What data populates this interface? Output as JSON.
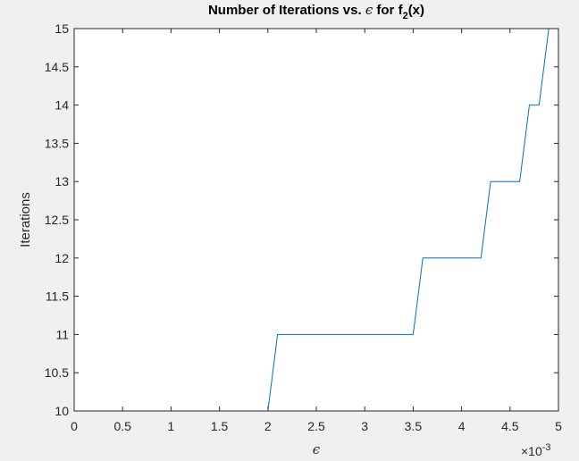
{
  "chart_data": {
    "type": "line",
    "title_main": "Number of Iterations vs. ",
    "title_symbol": "ϵ",
    "title_for": " for f",
    "title_subscript": "2",
    "title_tail": "(x)",
    "xlabel": "ϵ",
    "ylabel": "Iterations",
    "x_exponent_base": "×10",
    "x_exponent_power": "-3",
    "xlim": [
      0,
      5
    ],
    "ylim": [
      10,
      15
    ],
    "xticks": [
      0,
      0.5,
      1,
      1.5,
      2,
      2.5,
      3,
      3.5,
      4,
      4.5,
      5
    ],
    "xtick_labels": [
      "0",
      "0.5",
      "1",
      "1.5",
      "2",
      "2.5",
      "3",
      "3.5",
      "4",
      "4.5",
      "5"
    ],
    "yticks": [
      10,
      10.5,
      11,
      11.5,
      12,
      12.5,
      13,
      13.5,
      14,
      14.5,
      15
    ],
    "ytick_labels": [
      "10",
      "10.5",
      "11",
      "11.5",
      "12",
      "12.5",
      "13",
      "13.5",
      "14",
      "14.5",
      "15"
    ],
    "series": [
      {
        "name": "iterations",
        "color": "#0072BD",
        "x": [
          0,
          2.0,
          2.1,
          3.5,
          3.6,
          4.2,
          4.3,
          4.6,
          4.7,
          4.8,
          4.9
        ],
        "y": [
          10,
          10,
          11,
          11,
          12,
          12,
          13,
          13,
          14,
          14,
          15
        ]
      }
    ]
  }
}
